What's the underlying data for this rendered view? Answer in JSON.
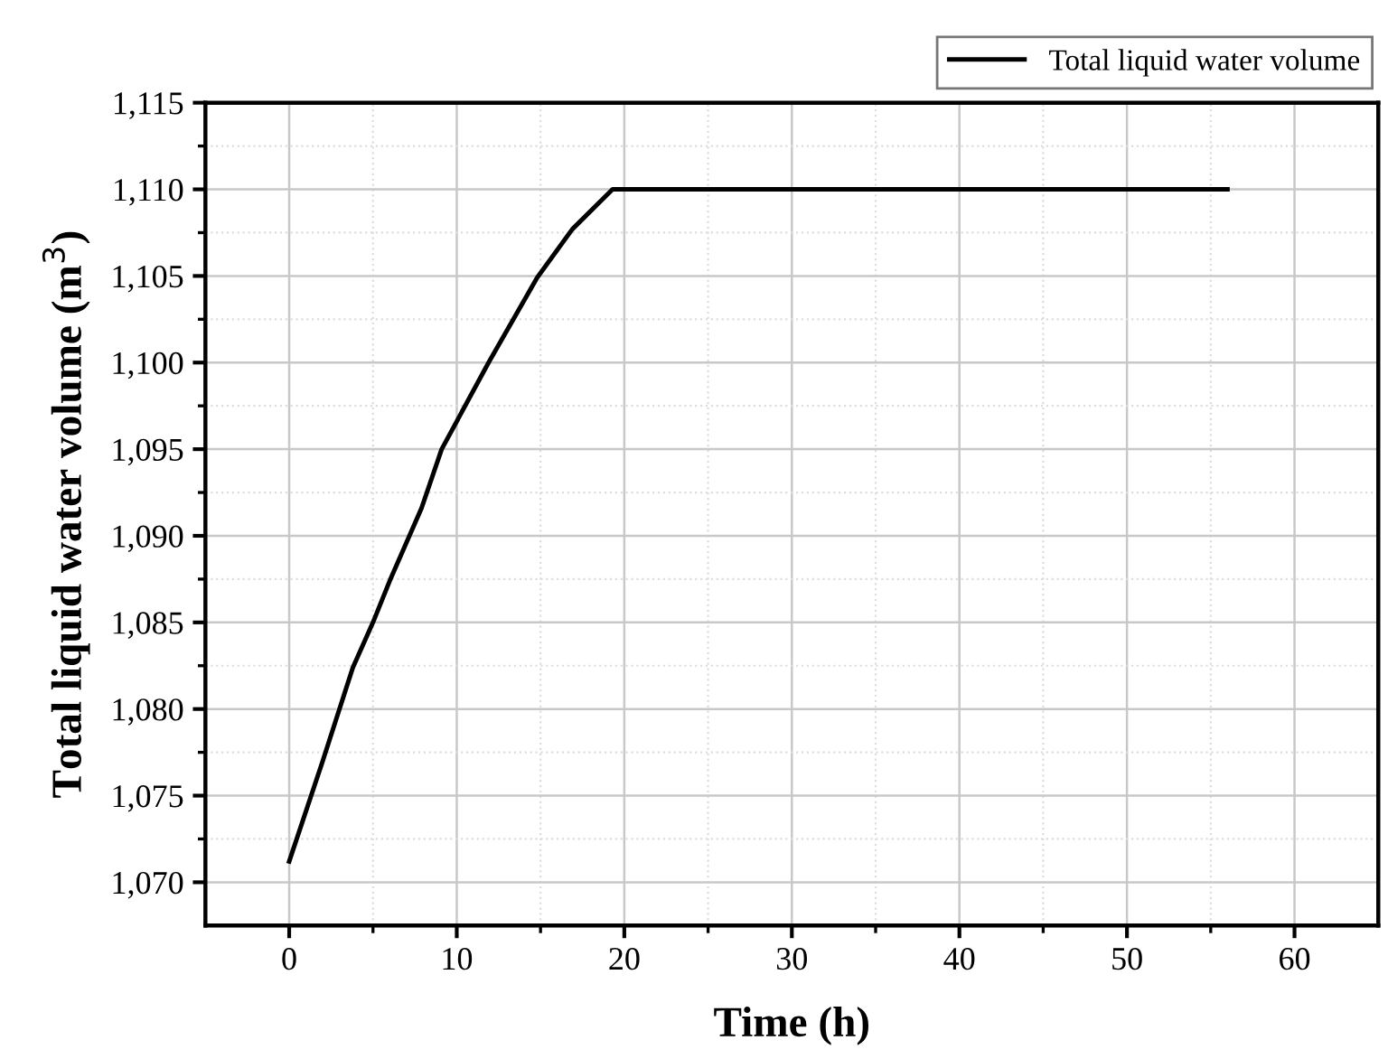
{
  "chart_data": {
    "type": "line",
    "xlabel": "Time (h)",
    "ylabel": "Total liquid water volume (m$^{3}$)",
    "x": [
      0,
      2,
      3.8,
      5,
      6,
      7.9,
      9.1,
      11.9,
      14.8,
      16.9,
      19.3,
      56
    ],
    "series": [
      {
        "name": "Total liquid water volume",
        "color": "#000000",
        "values": [
          1071.2,
          1077.0,
          1082.4,
          1085.0,
          1087.4,
          1091.6,
          1095.0,
          1100.0,
          1104.9,
          1107.7,
          1110.0,
          1110.0
        ]
      }
    ],
    "xlim": [
      -5,
      65
    ],
    "xticks": [
      0,
      10,
      20,
      30,
      40,
      50,
      60
    ],
    "ylim": [
      1067.5,
      1115
    ],
    "yticks": [
      {
        "value": 1070,
        "label": "1,070"
      },
      {
        "value": 1075,
        "label": "1,075"
      },
      {
        "value": 1080,
        "label": "1,080"
      },
      {
        "value": 1085,
        "label": "1,085"
      },
      {
        "value": 1090,
        "label": "1,090"
      },
      {
        "value": 1095,
        "label": "1,095"
      },
      {
        "value": 1100,
        "label": "1,100"
      },
      {
        "value": 1105,
        "label": "1,105"
      },
      {
        "value": 1110,
        "label": "1,110"
      },
      {
        "value": 1115,
        "label": "1,115"
      }
    ],
    "grid": true,
    "legend": "top right",
    "marker": "none",
    "line_style": "solid"
  }
}
